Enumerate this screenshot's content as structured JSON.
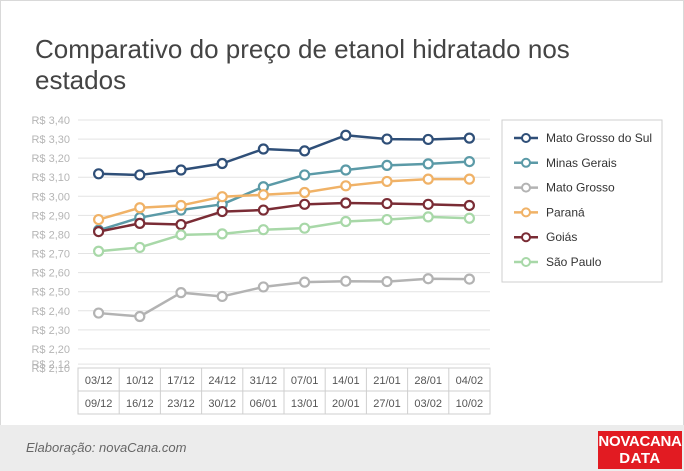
{
  "title": "Comparativo do preço de etanol hidratado nos estados",
  "footer": {
    "note": "Elaboração: novaCana.com",
    "brand_line1": "NOVACANA",
    "brand_line2": "DATA"
  },
  "chart_data": {
    "type": "line",
    "title": "Comparativo do preço de etanol hidratado nos estados",
    "xlabel": "",
    "ylabel": "",
    "ylim": [
      2.1,
      3.4
    ],
    "yticks": [
      "R$ 3,40",
      "R$ 3,30",
      "R$ 3,20",
      "R$ 3,10",
      "R$ 3,00",
      "R$ 2,90",
      "R$ 2,80",
      "R$ 2,70",
      "R$ 2,60",
      "R$ 2,50",
      "R$ 2,40",
      "R$ 2,30",
      "R$ 2,20",
      "R$ 2,12",
      "R$ 2,10"
    ],
    "ytick_values": [
      3.4,
      3.3,
      3.2,
      3.1,
      3.0,
      2.9,
      2.8,
      2.7,
      2.6,
      2.5,
      2.4,
      2.3,
      2.2,
      2.12,
      2.1
    ],
    "grid": true,
    "legend_position": "right",
    "categories": [
      {
        "top": "03/12",
        "bottom": "09/12"
      },
      {
        "top": "10/12",
        "bottom": "16/12"
      },
      {
        "top": "17/12",
        "bottom": "23/12"
      },
      {
        "top": "24/12",
        "bottom": "30/12"
      },
      {
        "top": "31/12",
        "bottom": "06/01"
      },
      {
        "top": "07/01",
        "bottom": "13/01"
      },
      {
        "top": "14/01",
        "bottom": "20/01"
      },
      {
        "top": "21/01",
        "bottom": "27/01"
      },
      {
        "top": "28/01",
        "bottom": "03/02"
      },
      {
        "top": "04/02",
        "bottom": "10/02"
      }
    ],
    "series": [
      {
        "name": "Mato Grosso do Sul",
        "color": "#2f4f78",
        "values": [
          3.118,
          3.112,
          3.138,
          3.172,
          3.248,
          3.238,
          3.32,
          3.3,
          3.298,
          3.305
        ]
      },
      {
        "name": "Minas Gerais",
        "color": "#5b9aa7",
        "values": [
          2.822,
          2.888,
          2.928,
          2.958,
          3.05,
          3.112,
          3.138,
          3.162,
          3.17,
          3.182
        ]
      },
      {
        "name": "Mato Grosso",
        "color": "#b3b3b3",
        "values": [
          2.388,
          2.37,
          2.495,
          2.475,
          2.525,
          2.55,
          2.555,
          2.553,
          2.568,
          2.566
        ]
      },
      {
        "name": "Paraná",
        "color": "#f0b267",
        "values": [
          2.878,
          2.94,
          2.952,
          2.998,
          3.008,
          3.02,
          3.055,
          3.078,
          3.09,
          3.09
        ]
      },
      {
        "name": "Goiás",
        "color": "#7a2c35",
        "values": [
          2.815,
          2.858,
          2.852,
          2.92,
          2.928,
          2.958,
          2.965,
          2.962,
          2.958,
          2.952
        ]
      },
      {
        "name": "São Paulo",
        "color": "#a8d8a8",
        "values": [
          2.712,
          2.732,
          2.798,
          2.803,
          2.825,
          2.833,
          2.868,
          2.878,
          2.892,
          2.885
        ]
      }
    ]
  }
}
